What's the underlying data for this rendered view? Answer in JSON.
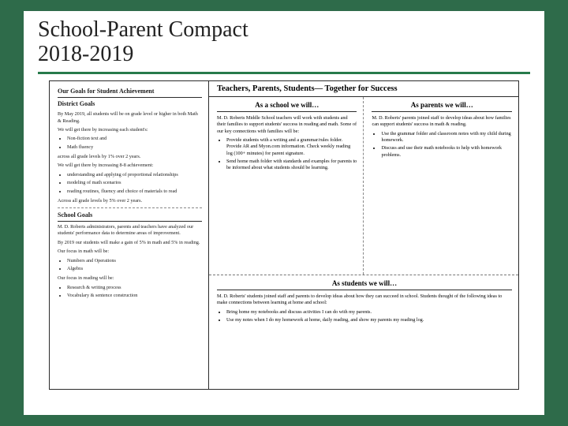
{
  "colors": {
    "slide_bg": "#ffffff",
    "page_bg": "#2e6b4a",
    "accent": "#277a4b",
    "text": "#1a1a1a",
    "border": "#2b2b2b"
  },
  "title": {
    "line1": "School-Parent Compact",
    "line2": "2018-2019",
    "fontsize": 28
  },
  "left": {
    "heading1": "Our Goals for Student Achievement",
    "heading2": "District Goals",
    "p1": "By May 2019, all students will be on grade level or higher in both Math & Reading.",
    "p2": "We will get there by increasing each student's:",
    "bullets1": [
      "Non-fiction text and",
      "Math fluency"
    ],
    "p3": "across all grade levels by 1% over 2 years.",
    "p4": "We will get there by increasing 8-8 achievement:",
    "bullets2": [
      "understanding and applying of proportional relationships",
      "modeling of math scenarios",
      "reading routines, fluency and choice of materials to read"
    ],
    "p5": "Across all grade levels by 5% over 2 years.",
    "heading3": "School Goals",
    "p6": "M. D. Roberts administrators, parents and teachers have analyzed our students' performance data to determine areas of improvement.",
    "p7": "By 2019 our students will make a gain of 5% in math and 5% in reading.",
    "p8": "Our focus in math will be:",
    "bullets3": [
      "Numbers and Operations",
      "Algebra"
    ],
    "p9": "Our focus in reading will be:",
    "bullets4": [
      "Research & writing process",
      "Vocabulary & sentence construction"
    ]
  },
  "right": {
    "banner": "Teachers, Parents, Students— Together for Success",
    "school": {
      "heading": "As a school we will…",
      "intro": "M. D. Roberts Middle School teachers will work with students and their families to support students' success in reading and math. Some of our key connections with families will be:",
      "bullets": [
        "Provide students with a writing and a grammar/rules folder. Provide AR and Myon.com information. Check weekly reading log (100+ minutes) for parent signature.",
        "Send home math folder with standards and examples for parents to be informed about what students should be learning."
      ]
    },
    "parents": {
      "heading": "As parents we will…",
      "intro": "M. D. Roberts' parents joined staff to develop ideas about how families can support students' success in math & reading.",
      "bullets": [
        "Use the grammar folder and classroom notes with my child during homework.",
        "Discuss and use their math notebooks to help with homework problems."
      ]
    },
    "students": {
      "heading": "As students we will…",
      "intro": "M. D. Roberts' students joined staff and parents to develop ideas about how they can succeed in school. Students thought of the following ideas to make connections between learning at home and school:",
      "bullets": [
        "Bring home my notebooks and discuss activities I can do with my parents.",
        "Use my notes when I do my homework at home, daily reading, and show my parents my reading log."
      ]
    }
  }
}
